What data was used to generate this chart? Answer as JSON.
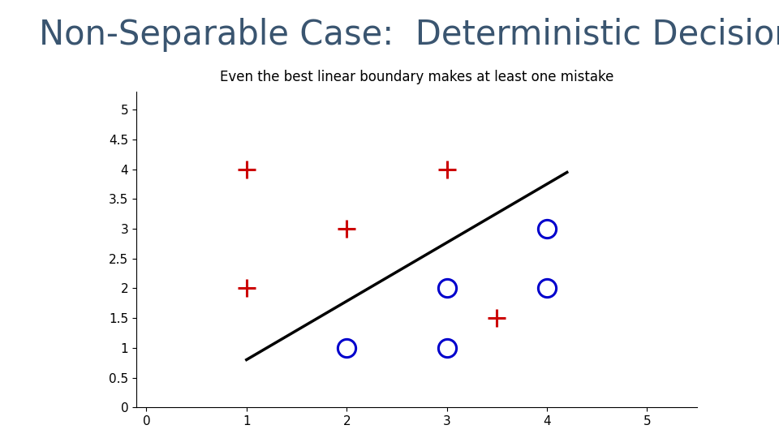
{
  "title": "Non-Separable Case:  Deterministic Decision",
  "subtitle": "Even the best linear boundary makes at least one mistake",
  "title_fontsize": 30,
  "subtitle_fontsize": 12,
  "plus_points": [
    [
      1,
      4
    ],
    [
      3,
      4
    ],
    [
      2,
      3
    ],
    [
      1,
      2
    ],
    [
      3.5,
      1.5
    ]
  ],
  "circle_points": [
    [
      2,
      1
    ],
    [
      3,
      1
    ],
    [
      3,
      2
    ],
    [
      4,
      2
    ],
    [
      4,
      3
    ]
  ],
  "plus_color": "#cc0000",
  "circle_color": "#0000cc",
  "plus_marker": "+",
  "circle_marker": "o",
  "marker_size": 16,
  "marker_linewidth": 2.2,
  "line_x": [
    1.0,
    4.2
  ],
  "line_y": [
    0.8,
    3.95
  ],
  "line_color": "#000000",
  "line_width": 2.5,
  "xlim": [
    -0.1,
    5.5
  ],
  "ylim": [
    0,
    5.3
  ],
  "xticks": [
    0,
    1,
    2,
    3,
    4,
    5
  ],
  "yticks": [
    0,
    0.5,
    1,
    1.5,
    2,
    2.5,
    3,
    3.5,
    4,
    4.5,
    5
  ],
  "ytick_labels": [
    "0",
    "0.5",
    "1",
    "1.5",
    "2",
    "2.5",
    "3",
    "3.5",
    "4",
    "4.5",
    "5"
  ],
  "xtick_labels": [
    "0",
    "1",
    "2",
    "3",
    "4",
    "5"
  ],
  "title_color": "#3a5570",
  "title_font_weight": "normal",
  "bg_color": "#ffffff",
  "fig_width": 9.6,
  "fig_height": 5.4
}
